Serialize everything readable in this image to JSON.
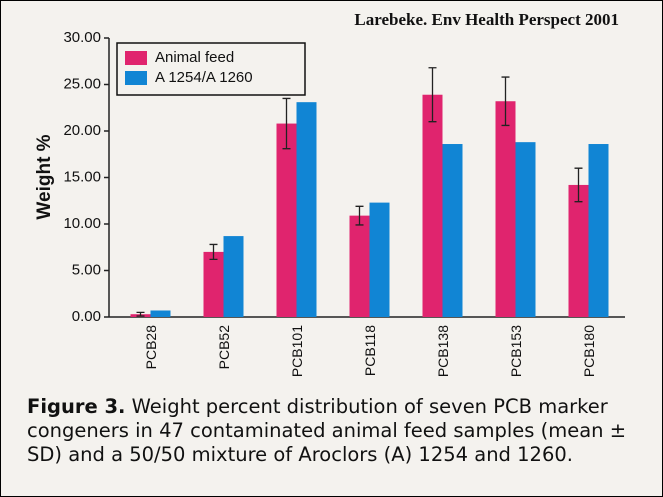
{
  "chart_data": {
    "type": "bar",
    "title": "Larebeke. Env Health Perspect 2001",
    "y_label": "Weight %",
    "categories": [
      "PCB28",
      "PCB52",
      "PCB101",
      "PCB118",
      "PCB138",
      "PCB153",
      "PCB180"
    ],
    "series": [
      {
        "name": "Animal feed",
        "color": "#e0246e",
        "values": [
          0.3,
          7.0,
          20.8,
          10.9,
          23.9,
          23.2,
          14.2
        ],
        "errors": [
          0.2,
          0.8,
          2.7,
          1.0,
          2.9,
          2.6,
          1.8
        ]
      },
      {
        "name": "A 1254/A 1260",
        "color": "#1185d4",
        "values": [
          0.7,
          8.7,
          23.1,
          12.3,
          18.6,
          18.8,
          18.6
        ]
      }
    ],
    "ylim": [
      0,
      30
    ],
    "yticks": [
      {
        "value": 0,
        "label": "0.00"
      },
      {
        "value": 5,
        "label": "5.00"
      },
      {
        "value": 10,
        "label": "10.00"
      },
      {
        "value": 15,
        "label": "15.00"
      },
      {
        "value": 20,
        "label": "20.00"
      },
      {
        "value": 25,
        "label": "25.00"
      },
      {
        "value": 30,
        "label": "30.00"
      }
    ],
    "legend": "upper left"
  },
  "caption": {
    "label": "Figure 3.",
    "text": "Weight percent distribution of seven PCB marker congeners in 47 contaminated animal feed samples (mean ± SD) and a 50/50 mixture of Aroclors (A) 1254 and 1260."
  }
}
